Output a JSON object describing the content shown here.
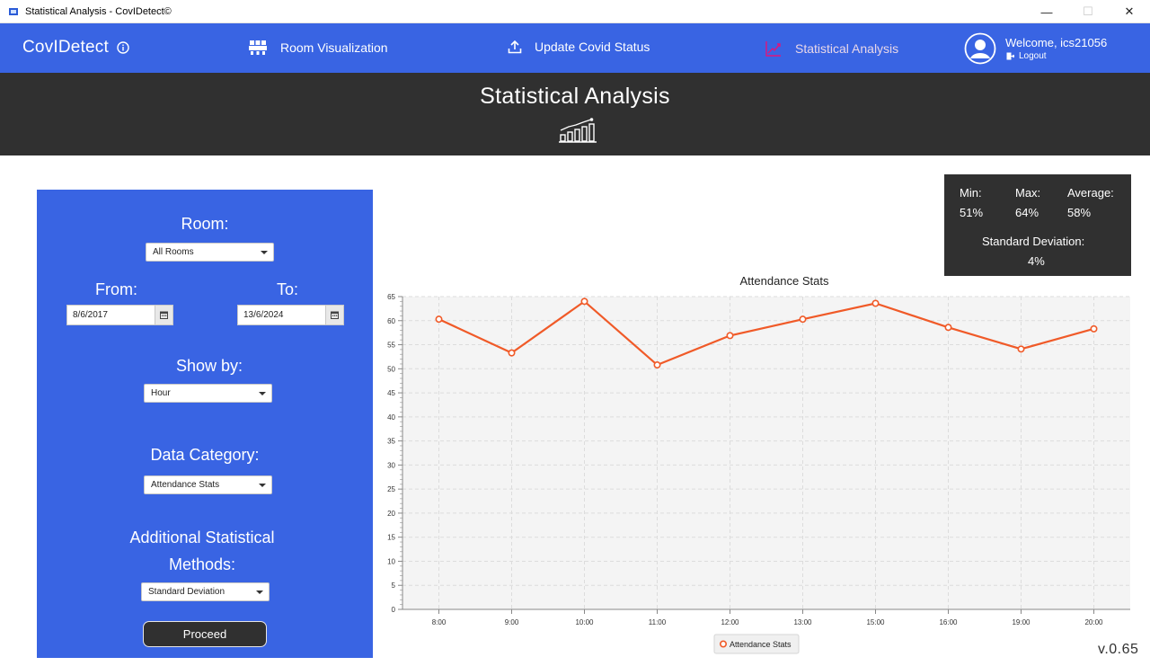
{
  "window": {
    "title": "Statistical Analysis - CovIDetect©"
  },
  "navbar": {
    "brand": "CovIDetect",
    "items": [
      {
        "label": "Room Visualization"
      },
      {
        "label": "Update Covid Status"
      },
      {
        "label": "Statistical Analysis"
      }
    ],
    "welcome": "Welcome, ics21056",
    "logout": "Logout"
  },
  "header": {
    "title": "Statistical Analysis"
  },
  "filters": {
    "room_label": "Room:",
    "room_value": "All Rooms",
    "from_label": "From:",
    "from_value": "8/6/2017",
    "to_label": "To:",
    "to_value": "13/6/2024",
    "show_by_label": "Show by:",
    "show_by_value": "Hour",
    "category_label": "Data Category:",
    "category_value": "Attendance Stats",
    "methods_label_1": "Additional Statistical",
    "methods_label_2": "Methods:",
    "methods_value": "Standard Deviation",
    "proceed": "Proceed"
  },
  "stats": {
    "min_label": "Min:",
    "min_value": "51%",
    "max_label": "Max:",
    "max_value": "64%",
    "avg_label": "Average:",
    "avg_value": "58%",
    "std_label": "Standard Deviation:",
    "std_value": "4%"
  },
  "chart_data": {
    "type": "line",
    "title": "Attendance Stats",
    "categories": [
      "8:00",
      "9:00",
      "10:00",
      "11:00",
      "12:00",
      "13:00",
      "15:00",
      "16:00",
      "19:00",
      "20:00"
    ],
    "series": [
      {
        "name": "Attendance Stats",
        "values": [
          60.3,
          53.3,
          64.0,
          50.8,
          56.9,
          60.3,
          63.6,
          58.6,
          54.1,
          58.3
        ]
      }
    ],
    "ylim": [
      0,
      65
    ],
    "yticks": [
      0,
      5,
      10,
      15,
      20,
      25,
      30,
      35,
      40,
      45,
      50,
      55,
      60,
      65
    ],
    "grid": true,
    "legend": "bottom",
    "colors": {
      "line": "#f05a28",
      "plot_bg": "#f4f4f4"
    }
  },
  "version": "v.0.65",
  "colors": {
    "primary": "#3964e3",
    "dark": "#303030",
    "accent_active": "#e0157c"
  }
}
